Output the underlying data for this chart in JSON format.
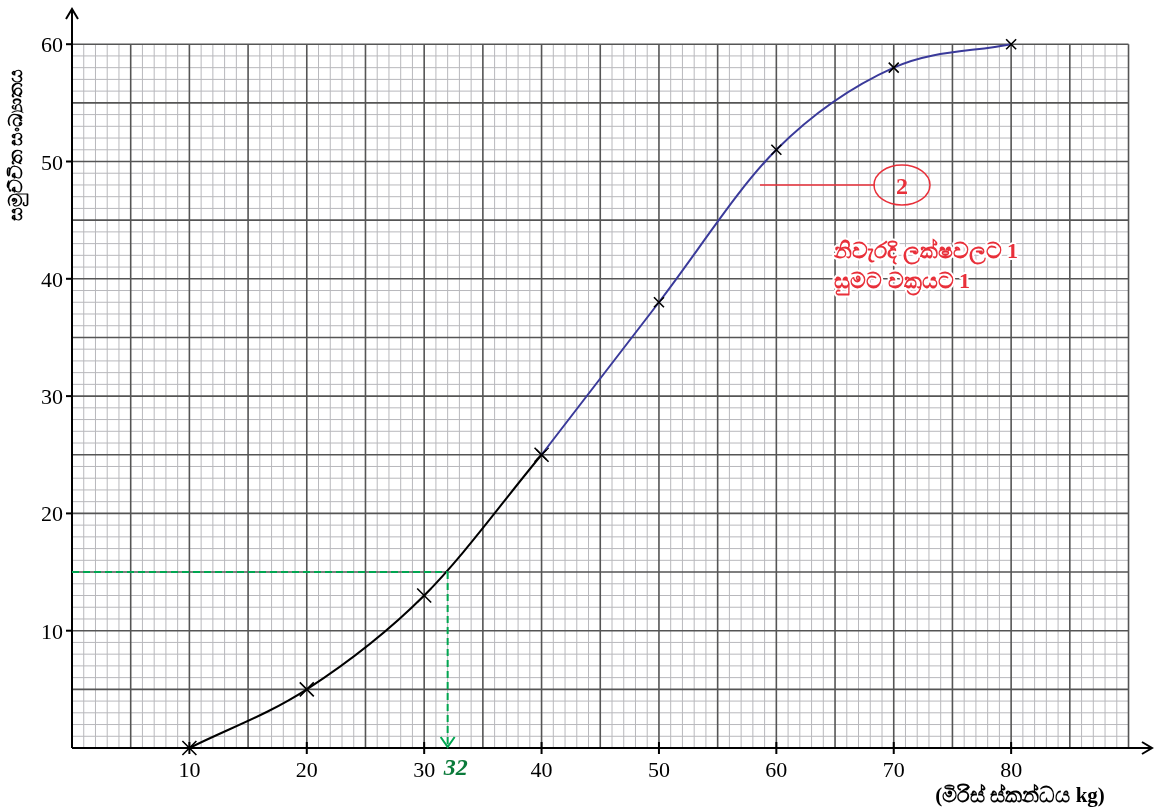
{
  "chart_data": {
    "type": "line",
    "xlabel": "(මිරිස් ස්කන්ධය kg)",
    "ylabel": "සමුච්චිත සංඛ්‍යාතය",
    "xlim": [
      0,
      92
    ],
    "ylim": [
      0,
      63
    ],
    "xticks": [
      10,
      20,
      30,
      40,
      50,
      60,
      70,
      80
    ],
    "yticks": [
      10,
      20,
      30,
      40,
      50,
      60
    ],
    "grid": true,
    "marker": "cross",
    "series": [
      {
        "color": "#000000",
        "x": [
          10,
          20,
          30,
          40
        ],
        "values": [
          0,
          5,
          13,
          25
        ]
      },
      {
        "color": "#3a3a9a",
        "x": [
          40,
          50,
          60,
          70,
          80
        ],
        "values": [
          25,
          38,
          51,
          58,
          60
        ]
      }
    ],
    "ref_lines": [
      {
        "axis": "y",
        "value": 15,
        "color": "#00a651",
        "line_style": "dashed"
      },
      {
        "axis": "x",
        "value": 32,
        "label": "32",
        "color": "#00a651",
        "line_style": "dashed"
      }
    ],
    "annotations": [
      "2",
      "නිවැරදි ලක්ෂවලට 1",
      "සුමට වක්‍රයට 1"
    ]
  }
}
